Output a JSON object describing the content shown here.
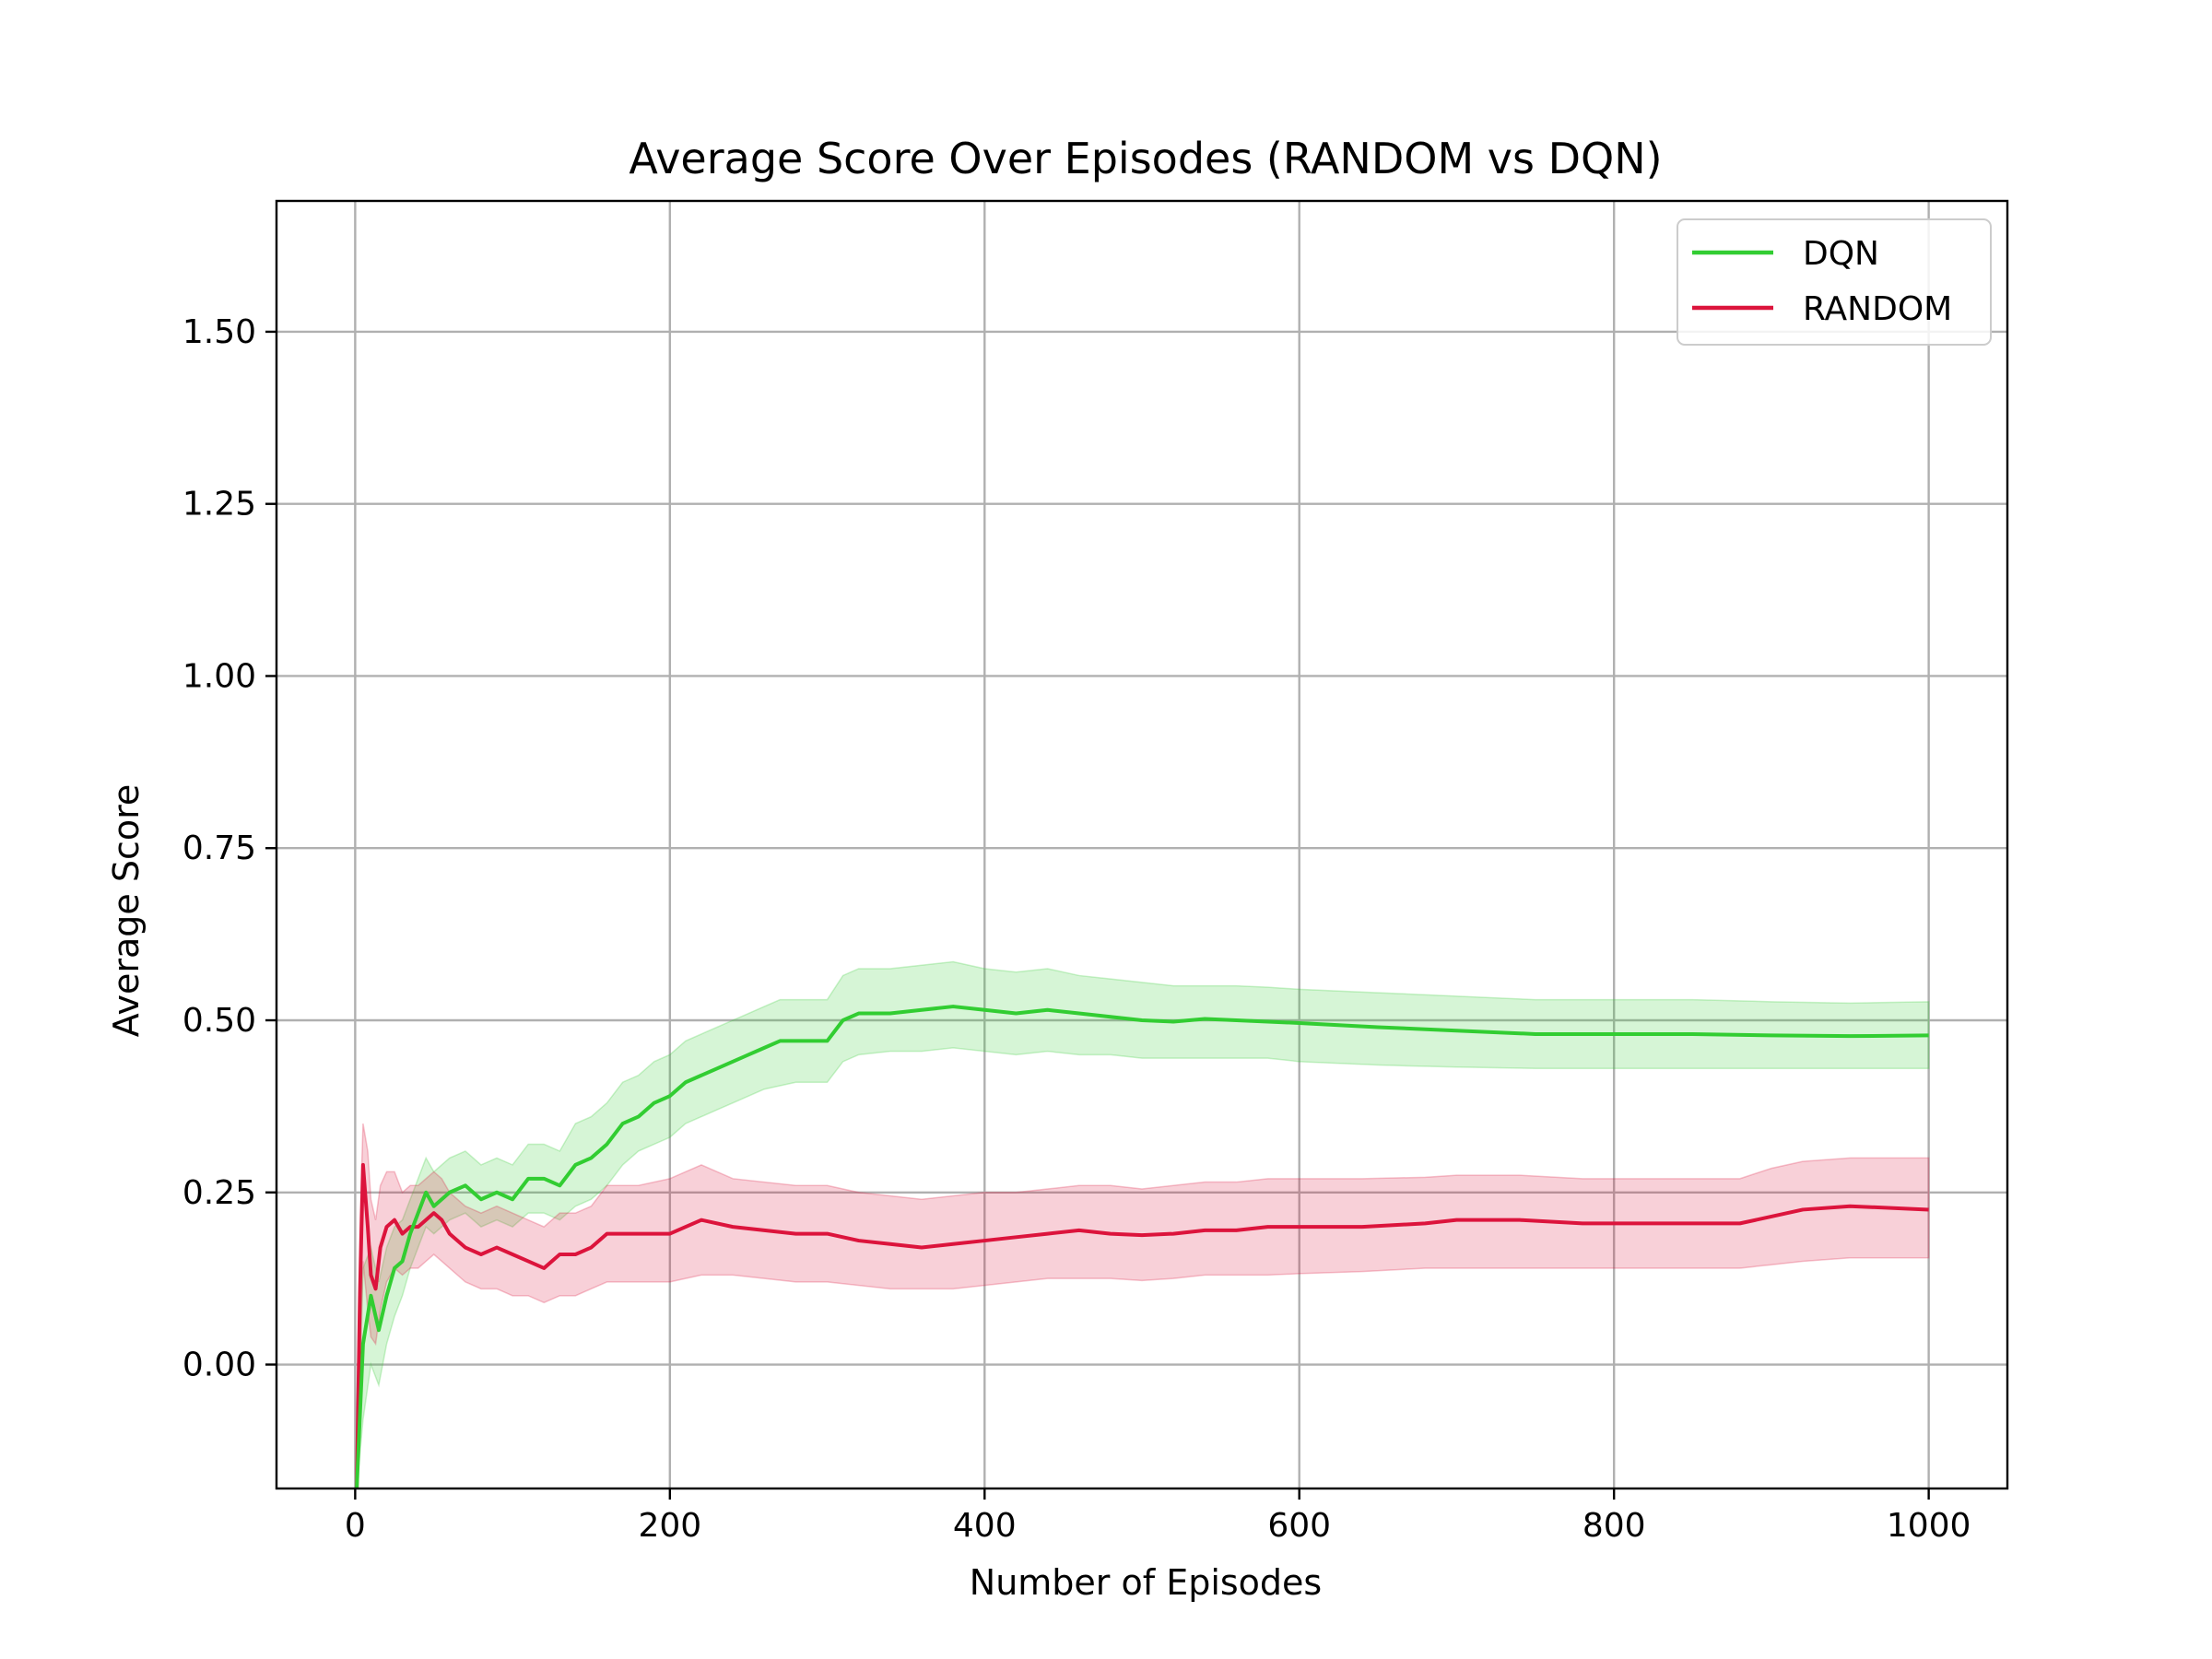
{
  "chart_data": {
    "type": "line",
    "title": "Average Score Over Episodes (RANDOM vs DQN)",
    "xlabel": "Number of Episodes",
    "ylabel": "Average Score",
    "xlim": [
      -50,
      1050
    ],
    "ylim": [
      -0.18,
      1.69
    ],
    "xticks": [
      0,
      200,
      400,
      600,
      800,
      1000
    ],
    "xtick_labels": [
      "0",
      "200",
      "400",
      "600",
      "800",
      "1000"
    ],
    "yticks": [
      0.0,
      0.25,
      0.5,
      0.75,
      1.0,
      1.25,
      1.5
    ],
    "ytick_labels": [
      "0.00",
      "0.25",
      "0.50",
      "0.75",
      "1.00",
      "1.25",
      "1.50"
    ],
    "grid": true,
    "legend_position": "top-right",
    "series": [
      {
        "name": "DQN",
        "color": "#32cd32",
        "band": "confidence interval (shaded)",
        "x": [
          1,
          5,
          10,
          15,
          20,
          25,
          30,
          35,
          40,
          45,
          50,
          60,
          70,
          80,
          90,
          100,
          110,
          120,
          130,
          140,
          150,
          160,
          170,
          180,
          190,
          200,
          210,
          220,
          230,
          240,
          250,
          260,
          270,
          280,
          290,
          300,
          310,
          320,
          340,
          360,
          380,
          400,
          420,
          440,
          460,
          480,
          500,
          520,
          540,
          560,
          580,
          600,
          650,
          700,
          750,
          800,
          850,
          900,
          950,
          1000
        ],
        "y": [
          -0.18,
          0.03,
          0.1,
          0.05,
          0.1,
          0.14,
          0.15,
          0.19,
          0.22,
          0.25,
          0.23,
          0.25,
          0.26,
          0.24,
          0.25,
          0.24,
          0.27,
          0.27,
          0.26,
          0.29,
          0.3,
          0.32,
          0.35,
          0.36,
          0.38,
          0.39,
          0.41,
          0.42,
          0.43,
          0.44,
          0.45,
          0.46,
          0.47,
          0.47,
          0.47,
          0.47,
          0.5,
          0.51,
          0.51,
          0.515,
          0.52,
          0.515,
          0.51,
          0.515,
          0.51,
          0.505,
          0.5,
          0.498,
          0.502,
          0.5,
          0.498,
          0.496,
          0.49,
          0.485,
          0.48,
          0.48,
          0.48,
          0.478,
          0.477,
          0.478
        ],
        "lower": [
          -0.18,
          -0.08,
          0.0,
          -0.03,
          0.03,
          0.07,
          0.1,
          0.14,
          0.17,
          0.2,
          0.19,
          0.21,
          0.22,
          0.2,
          0.21,
          0.2,
          0.22,
          0.22,
          0.21,
          0.23,
          0.24,
          0.26,
          0.29,
          0.31,
          0.32,
          0.33,
          0.35,
          0.36,
          0.37,
          0.38,
          0.39,
          0.4,
          0.405,
          0.41,
          0.41,
          0.41,
          0.44,
          0.45,
          0.455,
          0.455,
          0.46,
          0.455,
          0.45,
          0.455,
          0.45,
          0.45,
          0.445,
          0.445,
          0.445,
          0.445,
          0.445,
          0.44,
          0.435,
          0.432,
          0.43,
          0.43,
          0.43,
          0.43,
          0.43,
          0.43
        ],
        "upper": [
          -0.1,
          0.14,
          0.17,
          0.12,
          0.17,
          0.2,
          0.21,
          0.24,
          0.27,
          0.3,
          0.28,
          0.3,
          0.31,
          0.29,
          0.3,
          0.29,
          0.32,
          0.32,
          0.31,
          0.35,
          0.36,
          0.38,
          0.41,
          0.42,
          0.44,
          0.45,
          0.47,
          0.48,
          0.49,
          0.5,
          0.51,
          0.52,
          0.53,
          0.53,
          0.53,
          0.53,
          0.565,
          0.575,
          0.575,
          0.58,
          0.585,
          0.575,
          0.57,
          0.575,
          0.565,
          0.56,
          0.555,
          0.55,
          0.55,
          0.55,
          0.548,
          0.545,
          0.54,
          0.535,
          0.53,
          0.53,
          0.53,
          0.527,
          0.525,
          0.527
        ]
      },
      {
        "name": "RANDOM",
        "color": "#dc143c",
        "band": "confidence interval (shaded)",
        "x": [
          1,
          3,
          5,
          8,
          10,
          13,
          16,
          20,
          25,
          30,
          35,
          40,
          45,
          50,
          55,
          60,
          70,
          80,
          90,
          100,
          110,
          120,
          130,
          140,
          150,
          160,
          180,
          200,
          220,
          240,
          260,
          280,
          300,
          320,
          340,
          360,
          380,
          400,
          420,
          440,
          460,
          480,
          500,
          520,
          540,
          560,
          580,
          600,
          640,
          680,
          700,
          740,
          780,
          800,
          840,
          880,
          900,
          920,
          950,
          1000
        ],
        "y": [
          -0.18,
          0.1,
          0.29,
          0.2,
          0.13,
          0.11,
          0.17,
          0.2,
          0.21,
          0.19,
          0.2,
          0.2,
          0.21,
          0.22,
          0.21,
          0.19,
          0.17,
          0.16,
          0.17,
          0.16,
          0.15,
          0.14,
          0.16,
          0.16,
          0.17,
          0.19,
          0.19,
          0.19,
          0.21,
          0.2,
          0.195,
          0.19,
          0.19,
          0.18,
          0.175,
          0.17,
          0.175,
          0.18,
          0.185,
          0.19,
          0.195,
          0.19,
          0.188,
          0.19,
          0.195,
          0.195,
          0.2,
          0.2,
          0.2,
          0.205,
          0.21,
          0.21,
          0.205,
          0.205,
          0.205,
          0.205,
          0.215,
          0.225,
          0.23,
          0.225
        ],
        "lower": [
          -0.18,
          -0.05,
          0.15,
          0.08,
          0.04,
          0.03,
          0.08,
          0.12,
          0.14,
          0.13,
          0.14,
          0.14,
          0.15,
          0.16,
          0.15,
          0.14,
          0.12,
          0.11,
          0.11,
          0.1,
          0.1,
          0.09,
          0.1,
          0.1,
          0.11,
          0.12,
          0.12,
          0.12,
          0.13,
          0.13,
          0.125,
          0.12,
          0.12,
          0.115,
          0.11,
          0.11,
          0.11,
          0.115,
          0.12,
          0.125,
          0.125,
          0.125,
          0.122,
          0.125,
          0.13,
          0.13,
          0.13,
          0.132,
          0.135,
          0.14,
          0.14,
          0.14,
          0.14,
          0.14,
          0.14,
          0.14,
          0.145,
          0.15,
          0.155,
          0.155
        ],
        "upper": [
          -0.1,
          0.2,
          0.35,
          0.31,
          0.24,
          0.21,
          0.26,
          0.28,
          0.28,
          0.25,
          0.26,
          0.26,
          0.27,
          0.28,
          0.27,
          0.25,
          0.23,
          0.22,
          0.23,
          0.22,
          0.21,
          0.2,
          0.22,
          0.22,
          0.23,
          0.26,
          0.26,
          0.27,
          0.29,
          0.27,
          0.265,
          0.26,
          0.26,
          0.25,
          0.245,
          0.24,
          0.245,
          0.25,
          0.25,
          0.255,
          0.26,
          0.26,
          0.255,
          0.26,
          0.265,
          0.265,
          0.27,
          0.27,
          0.27,
          0.272,
          0.275,
          0.275,
          0.27,
          0.27,
          0.27,
          0.27,
          0.285,
          0.295,
          0.3,
          0.3
        ]
      }
    ]
  }
}
